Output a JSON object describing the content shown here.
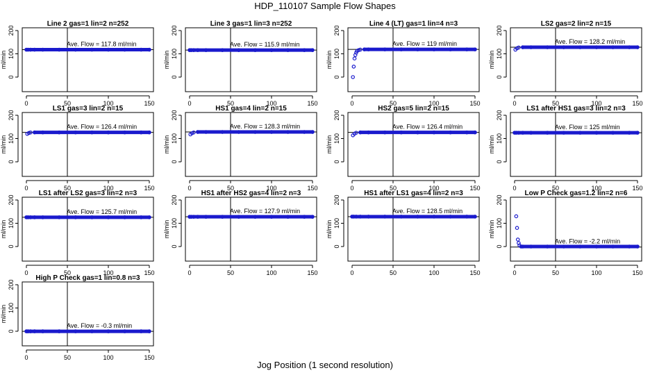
{
  "page": {
    "title": "HDP_110107  Sample Flow Shapes",
    "xlabel": "Jog Position (1 second resolution)"
  },
  "colors": {
    "points": "#1a1acd",
    "axis": "#000000"
  },
  "chart_data": [
    {
      "type": "scatter",
      "title": "Line 2 gas=1 lin=2 n=252",
      "ylabel": "ml/min",
      "xlim": [
        0,
        150
      ],
      "ylim": [
        0,
        200
      ],
      "xticks": [
        0,
        50,
        100,
        150
      ],
      "yticks": [
        0,
        100,
        200
      ],
      "vline": 50,
      "hline": 117.8,
      "annotation": "Ave. Flow =  117.8  ml/min",
      "points": [
        [
          0,
          117.8
        ],
        [
          2,
          117.8
        ],
        [
          5,
          117.8
        ],
        [
          10,
          117.8
        ],
        [
          20,
          117.8
        ],
        [
          40,
          117.8
        ],
        [
          60,
          117.8
        ],
        [
          80,
          117.8
        ],
        [
          100,
          117.8
        ],
        [
          120,
          117.8
        ],
        [
          140,
          117.8
        ],
        [
          150,
          117.8
        ]
      ]
    },
    {
      "type": "scatter",
      "title": "Line 3 gas=1 lin=3 n=252",
      "ylabel": "ml/min",
      "xlim": [
        0,
        150
      ],
      "ylim": [
        0,
        200
      ],
      "xticks": [
        0,
        50,
        100,
        150
      ],
      "yticks": [
        0,
        100,
        200
      ],
      "vline": 50,
      "hline": 115.9,
      "annotation": "Ave. Flow =  115.9  ml/min",
      "points": [
        [
          0,
          115.9
        ],
        [
          2,
          115.9
        ],
        [
          5,
          115.9
        ],
        [
          10,
          115.9
        ],
        [
          20,
          115.9
        ],
        [
          40,
          115.9
        ],
        [
          60,
          115.9
        ],
        [
          80,
          115.9
        ],
        [
          100,
          115.9
        ],
        [
          120,
          115.9
        ],
        [
          140,
          115.9
        ],
        [
          150,
          115.9
        ]
      ]
    },
    {
      "type": "scatter",
      "title": "Line 4 (LT) gas=1 lin=4 n=3",
      "ylabel": "ml/min",
      "xlim": [
        0,
        150
      ],
      "ylim": [
        0,
        200
      ],
      "xticks": [
        0,
        50,
        100,
        150
      ],
      "yticks": [
        0,
        100,
        200
      ],
      "vline": 50,
      "hline": 119,
      "annotation": "Ave. Flow =  119  ml/min",
      "points": [
        [
          1,
          0
        ],
        [
          2,
          45
        ],
        [
          3,
          80
        ],
        [
          4,
          95
        ],
        [
          5,
          105
        ],
        [
          6,
          112
        ],
        [
          8,
          116
        ],
        [
          10,
          118
        ],
        [
          15,
          119
        ],
        [
          20,
          119
        ],
        [
          40,
          119
        ],
        [
          60,
          119
        ],
        [
          80,
          119
        ],
        [
          100,
          119
        ],
        [
          120,
          119
        ],
        [
          140,
          119
        ],
        [
          150,
          119
        ]
      ]
    },
    {
      "type": "scatter",
      "title": "LS2 gas=2 lin=2 n=15",
      "ylabel": "ml/min",
      "xlim": [
        0,
        150
      ],
      "ylim": [
        0,
        200
      ],
      "xticks": [
        0,
        50,
        100,
        150
      ],
      "yticks": [
        0,
        100,
        200
      ],
      "vline": 50,
      "hline": 128.2,
      "annotation": "Ave. Flow =  128.2  ml/min",
      "points": [
        [
          1,
          118
        ],
        [
          3,
          124
        ],
        [
          5,
          127
        ],
        [
          10,
          128.2
        ],
        [
          20,
          128.2
        ],
        [
          40,
          128.2
        ],
        [
          60,
          128.2
        ],
        [
          80,
          128.2
        ],
        [
          100,
          128.2
        ],
        [
          120,
          128.2
        ],
        [
          140,
          128.2
        ],
        [
          150,
          128.2
        ]
      ]
    },
    {
      "type": "scatter",
      "title": "LS1 gas=3 lin=2 n=15",
      "ylabel": "ml/min",
      "xlim": [
        0,
        150
      ],
      "ylim": [
        0,
        200
      ],
      "xticks": [
        0,
        50,
        100,
        150
      ],
      "yticks": [
        0,
        100,
        200
      ],
      "vline": 50,
      "hline": 126.4,
      "annotation": "Ave. Flow =  126.4  ml/min",
      "points": [
        [
          1,
          120
        ],
        [
          3,
          124
        ],
        [
          5,
          126
        ],
        [
          10,
          126.4
        ],
        [
          20,
          126.4
        ],
        [
          40,
          126.4
        ],
        [
          60,
          126.4
        ],
        [
          80,
          126.4
        ],
        [
          100,
          126.4
        ],
        [
          120,
          126.4
        ],
        [
          140,
          126.4
        ],
        [
          150,
          126.4
        ]
      ]
    },
    {
      "type": "scatter",
      "title": "HS1 gas=4 lin=2 n=15",
      "ylabel": "ml/min",
      "xlim": [
        0,
        150
      ],
      "ylim": [
        0,
        200
      ],
      "xticks": [
        0,
        50,
        100,
        150
      ],
      "yticks": [
        0,
        100,
        200
      ],
      "vline": 50,
      "hline": 128.3,
      "annotation": "Ave. Flow =  128.3  ml/min",
      "points": [
        [
          1,
          118
        ],
        [
          3,
          123
        ],
        [
          5,
          126
        ],
        [
          10,
          128.3
        ],
        [
          20,
          128.3
        ],
        [
          40,
          128.3
        ],
        [
          60,
          128.3
        ],
        [
          80,
          128.3
        ],
        [
          100,
          128.3
        ],
        [
          120,
          128.3
        ],
        [
          140,
          128.3
        ],
        [
          150,
          128.3
        ]
      ]
    },
    {
      "type": "scatter",
      "title": "HS2 gas=5 lin=2 n=15",
      "ylabel": "ml/min",
      "xlim": [
        0,
        150
      ],
      "ylim": [
        0,
        200
      ],
      "xticks": [
        0,
        50,
        100,
        150
      ],
      "yticks": [
        0,
        100,
        200
      ],
      "vline": 50,
      "hline": 126.4,
      "annotation": "Ave. Flow =  126.4  ml/min",
      "points": [
        [
          1,
          114
        ],
        [
          3,
          121
        ],
        [
          5,
          125
        ],
        [
          10,
          126.4
        ],
        [
          20,
          126.4
        ],
        [
          40,
          126.4
        ],
        [
          60,
          126.4
        ],
        [
          80,
          126.4
        ],
        [
          100,
          126.4
        ],
        [
          120,
          126.4
        ],
        [
          140,
          126.4
        ],
        [
          150,
          126.4
        ]
      ]
    },
    {
      "type": "scatter",
      "title": "LS1 after HS1 gas=3 lin=2 n=3",
      "ylabel": "ml/min",
      "xlim": [
        0,
        150
      ],
      "ylim": [
        0,
        200
      ],
      "xticks": [
        0,
        50,
        100,
        150
      ],
      "yticks": [
        0,
        100,
        200
      ],
      "vline": 50,
      "hline": 125,
      "annotation": "Ave. Flow =  125  ml/min",
      "points": [
        [
          0,
          125
        ],
        [
          2,
          125
        ],
        [
          5,
          125
        ],
        [
          10,
          125
        ],
        [
          20,
          125
        ],
        [
          40,
          125
        ],
        [
          60,
          125
        ],
        [
          80,
          125
        ],
        [
          100,
          125
        ],
        [
          120,
          125
        ],
        [
          140,
          125
        ],
        [
          150,
          125
        ]
      ]
    },
    {
      "type": "scatter",
      "title": "LS1 after LS2 gas=3 lin=2 n=3",
      "ylabel": "ml/min",
      "xlim": [
        0,
        150
      ],
      "ylim": [
        0,
        200
      ],
      "xticks": [
        0,
        50,
        100,
        150
      ],
      "yticks": [
        0,
        100,
        200
      ],
      "vline": 50,
      "hline": 125.7,
      "annotation": "Ave. Flow =  125.7  ml/min",
      "points": [
        [
          0,
          125.7
        ],
        [
          2,
          125.7
        ],
        [
          5,
          125.7
        ],
        [
          10,
          125.7
        ],
        [
          20,
          125.7
        ],
        [
          40,
          125.7
        ],
        [
          60,
          125.7
        ],
        [
          80,
          125.7
        ],
        [
          100,
          125.7
        ],
        [
          120,
          125.7
        ],
        [
          140,
          125.7
        ],
        [
          150,
          125.7
        ]
      ]
    },
    {
      "type": "scatter",
      "title": "HS1 after HS2 gas=4 lin=2 n=3",
      "ylabel": "ml/min",
      "xlim": [
        0,
        150
      ],
      "ylim": [
        0,
        200
      ],
      "xticks": [
        0,
        50,
        100,
        150
      ],
      "yticks": [
        0,
        100,
        200
      ],
      "vline": 50,
      "hline": 127.9,
      "annotation": "Ave. Flow =  127.9  ml/min",
      "points": [
        [
          0,
          127.9
        ],
        [
          2,
          127.9
        ],
        [
          5,
          127.9
        ],
        [
          10,
          127.9
        ],
        [
          20,
          127.9
        ],
        [
          40,
          127.9
        ],
        [
          60,
          127.9
        ],
        [
          80,
          127.9
        ],
        [
          100,
          127.9
        ],
        [
          120,
          127.9
        ],
        [
          140,
          127.9
        ],
        [
          150,
          127.9
        ]
      ]
    },
    {
      "type": "scatter",
      "title": "HS1 after LS1 gas=4 lin=2 n=3",
      "ylabel": "ml/min",
      "xlim": [
        0,
        150
      ],
      "ylim": [
        0,
        200
      ],
      "xticks": [
        0,
        50,
        100,
        150
      ],
      "yticks": [
        0,
        100,
        200
      ],
      "vline": 50,
      "hline": 128.5,
      "annotation": "Ave. Flow =  128.5  ml/min",
      "points": [
        [
          0,
          128.5
        ],
        [
          2,
          128.5
        ],
        [
          5,
          128.5
        ],
        [
          10,
          128.5
        ],
        [
          20,
          128.5
        ],
        [
          40,
          128.5
        ],
        [
          60,
          128.5
        ],
        [
          80,
          128.5
        ],
        [
          100,
          128.5
        ],
        [
          120,
          128.5
        ],
        [
          140,
          128.5
        ],
        [
          150,
          128.5
        ]
      ]
    },
    {
      "type": "scatter",
      "title": "Low P Check gas=1.2 lin=2 n=6",
      "ylabel": "ml/min",
      "xlim": [
        0,
        150
      ],
      "ylim": [
        0,
        200
      ],
      "xticks": [
        0,
        50,
        100,
        150
      ],
      "yticks": [
        0,
        100,
        200
      ],
      "vline": 50,
      "hline": -2.2,
      "annotation": "Ave. Flow =  -2.2  ml/min",
      "points": [
        [
          2,
          130
        ],
        [
          3,
          80
        ],
        [
          4,
          30
        ],
        [
          5,
          15
        ],
        [
          6,
          5
        ],
        [
          8,
          0
        ],
        [
          10,
          0
        ],
        [
          20,
          0
        ],
        [
          40,
          0
        ],
        [
          60,
          0
        ],
        [
          80,
          0
        ],
        [
          100,
          0
        ],
        [
          120,
          0
        ],
        [
          140,
          0
        ],
        [
          150,
          0
        ]
      ]
    },
    {
      "type": "scatter",
      "title": "High P Check gas=1 lin=0.8 n=3",
      "ylabel": "ml/min",
      "xlim": [
        0,
        150
      ],
      "ylim": [
        0,
        200
      ],
      "xticks": [
        0,
        50,
        100,
        150
      ],
      "yticks": [
        0,
        100,
        200
      ],
      "vline": 50,
      "hline": -0.3,
      "annotation": "Ave. Flow =  -0.3  ml/min",
      "points": [
        [
          0,
          -0.3
        ],
        [
          2,
          -0.3
        ],
        [
          5,
          -0.3
        ],
        [
          10,
          -0.3
        ],
        [
          20,
          -0.3
        ],
        [
          40,
          -0.3
        ],
        [
          60,
          -0.3
        ],
        [
          80,
          -0.3
        ],
        [
          100,
          -0.3
        ],
        [
          120,
          -0.3
        ],
        [
          140,
          -0.3
        ],
        [
          150,
          -0.3
        ]
      ]
    }
  ]
}
